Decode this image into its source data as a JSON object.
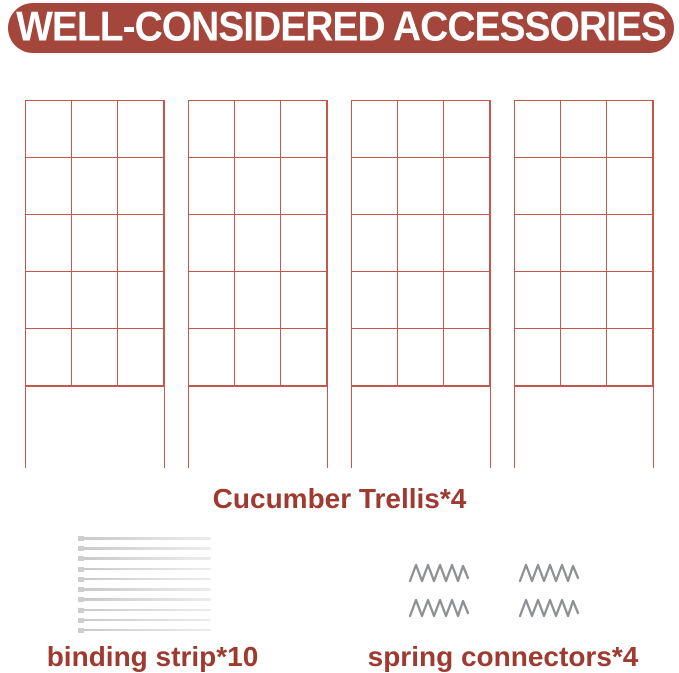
{
  "header": {
    "title": "WELL-CONSIDERED ACCESSORIES"
  },
  "colors": {
    "banner_bg": "#a4463b",
    "banner_text": "#ffffff",
    "label_text": "#9f3a31",
    "trellis_line": "#c4574b",
    "strip_fill": "#dedede",
    "spring_stroke": "#8e9093"
  },
  "trellis": {
    "count": 4,
    "columns": 3,
    "rows": 5,
    "label": "Cucumber Trellis*4"
  },
  "binding_strips": {
    "count": 10,
    "label": "binding strip*10"
  },
  "spring_connectors": {
    "count": 4,
    "label": "spring connectors*4"
  }
}
